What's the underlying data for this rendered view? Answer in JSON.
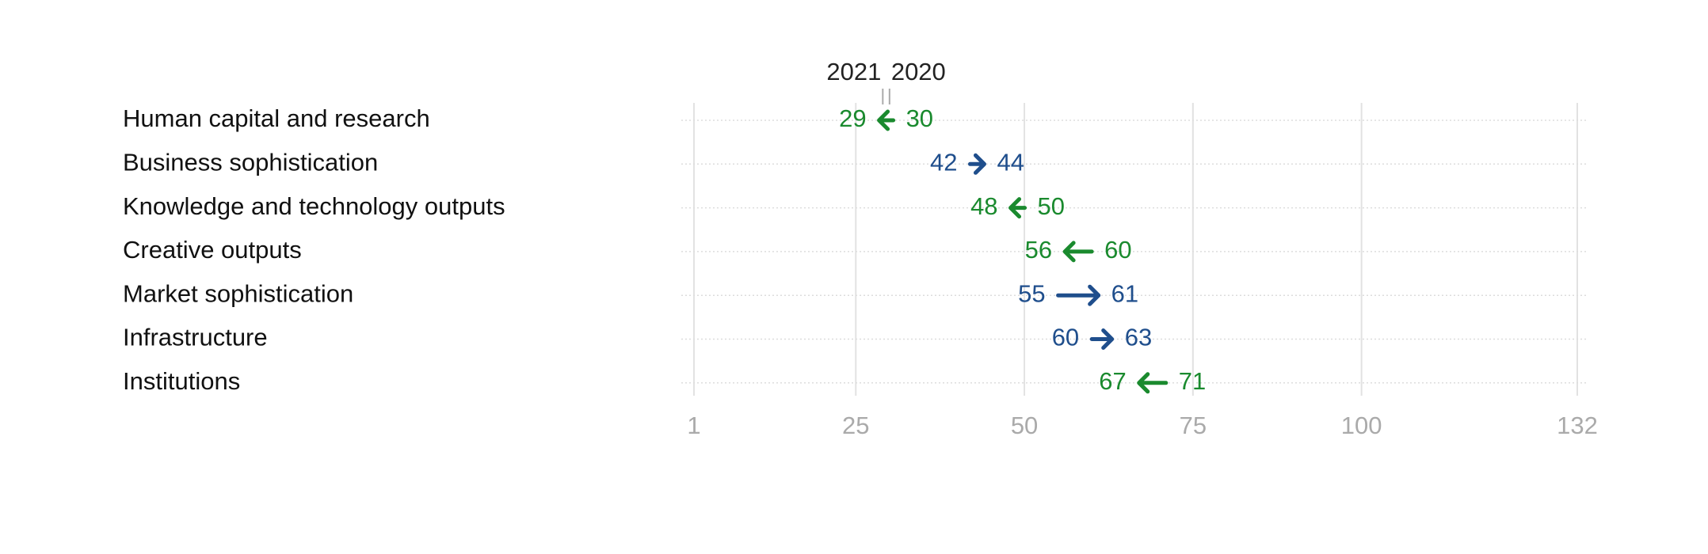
{
  "chart_data": {
    "type": "arrow",
    "categories": [
      "Human capital and research",
      "Business sophistication",
      "Knowledge and technology outputs",
      "Creative outputs",
      "Market sophistication",
      "Infrastructure",
      "Institutions"
    ],
    "series": [
      {
        "name": "2020",
        "values": [
          30,
          42,
          50,
          60,
          55,
          60,
          71
        ]
      },
      {
        "name": "2021",
        "values": [
          29,
          44,
          48,
          56,
          61,
          63,
          67
        ]
      }
    ],
    "improved_color": "#1a8a2e",
    "declined_color": "#1f4e8c",
    "xlim": [
      1,
      132
    ],
    "xticks": [
      1,
      25,
      50,
      75,
      100,
      132
    ],
    "grid": true
  }
}
